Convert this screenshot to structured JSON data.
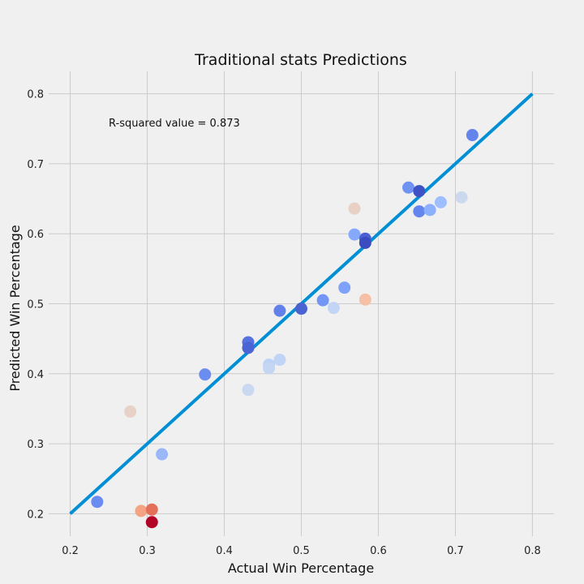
{
  "chart_data": {
    "type": "scatter",
    "title": "Traditional stats Predictions",
    "xlabel": "Actual Win Percentage",
    "ylabel": "Predicted Win Percentage",
    "annotation": "R-squared value = 0.873",
    "xlim": [
      0.172,
      0.828
    ],
    "ylim": [
      0.168,
      0.832
    ],
    "xticks": [
      0.2,
      0.3,
      0.4,
      0.5,
      0.6,
      0.7,
      0.8
    ],
    "yticks": [
      0.2,
      0.3,
      0.4,
      0.5,
      0.6,
      0.7,
      0.8
    ],
    "xtick_labels": [
      "0.2",
      "0.3",
      "0.4",
      "0.5",
      "0.6",
      "0.7",
      "0.8"
    ],
    "ytick_labels": [
      "0.2",
      "0.3",
      "0.4",
      "0.5",
      "0.6",
      "0.7",
      "0.8"
    ],
    "grid": true,
    "reference_line": {
      "x": [
        0.2,
        0.8
      ],
      "y": [
        0.2,
        0.8
      ],
      "color": "#008fd5"
    },
    "points": [
      {
        "x": 0.235,
        "y": 0.217,
        "color": "#6a8cf0"
      },
      {
        "x": 0.278,
        "y": 0.346,
        "color": "#e8d2c8"
      },
      {
        "x": 0.292,
        "y": 0.204,
        "color": "#f4a482"
      },
      {
        "x": 0.306,
        "y": 0.206,
        "color": "#e4705a"
      },
      {
        "x": 0.306,
        "y": 0.188,
        "color": "#b40426"
      },
      {
        "x": 0.319,
        "y": 0.285,
        "color": "#9ab8f9"
      },
      {
        "x": 0.375,
        "y": 0.399,
        "color": "#6b8df0"
      },
      {
        "x": 0.431,
        "y": 0.445,
        "color": "#5572df"
      },
      {
        "x": 0.431,
        "y": 0.437,
        "color": "#4b64d5"
      },
      {
        "x": 0.431,
        "y": 0.377,
        "color": "#cad8f1"
      },
      {
        "x": 0.458,
        "y": 0.413,
        "color": "#bcd2f6"
      },
      {
        "x": 0.458,
        "y": 0.408,
        "color": "#c5d6f2"
      },
      {
        "x": 0.472,
        "y": 0.42,
        "color": "#c0d4f5"
      },
      {
        "x": 0.472,
        "y": 0.49,
        "color": "#6180e9"
      },
      {
        "x": 0.5,
        "y": 0.493,
        "color": "#4a63d3"
      },
      {
        "x": 0.528,
        "y": 0.505,
        "color": "#7396f5"
      },
      {
        "x": 0.542,
        "y": 0.494,
        "color": "#c3d5f4"
      },
      {
        "x": 0.556,
        "y": 0.523,
        "color": "#7ea1fa"
      },
      {
        "x": 0.569,
        "y": 0.636,
        "color": "#e8d0c5"
      },
      {
        "x": 0.569,
        "y": 0.599,
        "color": "#86a9fc"
      },
      {
        "x": 0.583,
        "y": 0.593,
        "color": "#4961d2"
      },
      {
        "x": 0.583,
        "y": 0.587,
        "color": "#3b4cc0"
      },
      {
        "x": 0.583,
        "y": 0.506,
        "color": "#f5c0a6"
      },
      {
        "x": 0.639,
        "y": 0.666,
        "color": "#6f92f3"
      },
      {
        "x": 0.653,
        "y": 0.661,
        "color": "#3e51c5"
      },
      {
        "x": 0.653,
        "y": 0.632,
        "color": "#6485ec"
      },
      {
        "x": 0.667,
        "y": 0.634,
        "color": "#8caffe"
      },
      {
        "x": 0.681,
        "y": 0.645,
        "color": "#9ebeff"
      },
      {
        "x": 0.708,
        "y": 0.652,
        "color": "#cbd8ee"
      },
      {
        "x": 0.722,
        "y": 0.741,
        "color": "#6384eb"
      }
    ]
  }
}
